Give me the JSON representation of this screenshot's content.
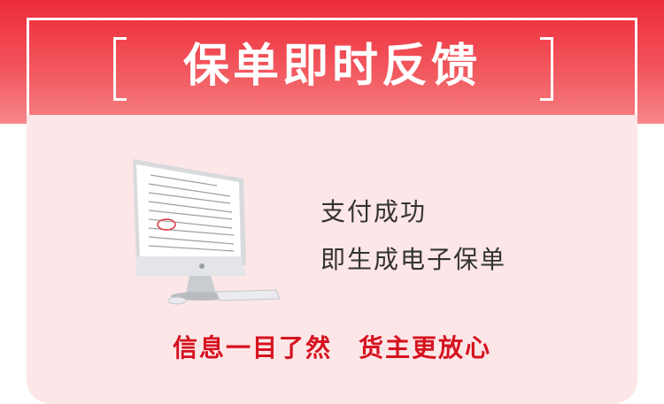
{
  "header": {
    "title": "保单即时反馈"
  },
  "features": [
    "支付成功",
    "即生成电子保单"
  ],
  "tagline": "信息一目了然　货主更放心",
  "colors": {
    "brand_red": "#ee2b3a",
    "card_pink": "#fde6e7",
    "tagline_red": "#d6121f",
    "text_dark": "#333333"
  },
  "icons": {
    "illustration": "computer-monitor-icon"
  }
}
